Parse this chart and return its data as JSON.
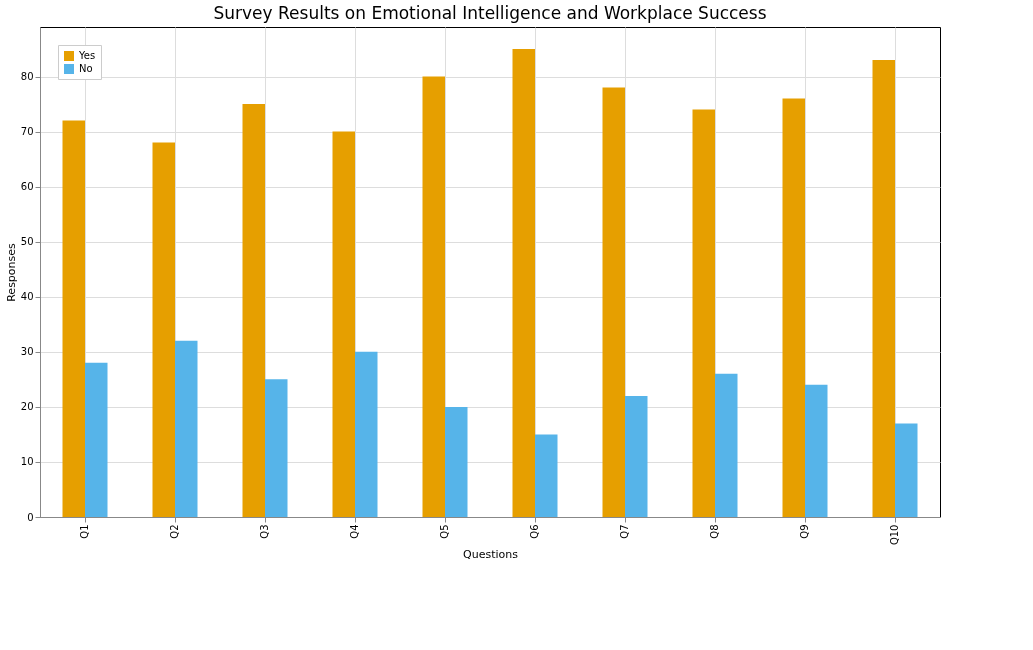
{
  "chart_data": {
    "type": "bar",
    "title": "Survey Results on Emotional Intelligence and Workplace Success",
    "xlabel": "Questions",
    "ylabel": "Responses",
    "categories": [
      "Q1",
      "Q2",
      "Q3",
      "Q4",
      "Q5",
      "Q6",
      "Q7",
      "Q8",
      "Q9",
      "Q10"
    ],
    "series": [
      {
        "name": "Yes",
        "color": "#e69f00",
        "values": [
          72,
          68,
          75,
          70,
          80,
          85,
          78,
          74,
          76,
          83
        ]
      },
      {
        "name": "No",
        "color": "#56b4e9",
        "values": [
          28,
          32,
          25,
          30,
          20,
          15,
          22,
          26,
          24,
          17
        ]
      }
    ],
    "ylim": [
      0,
      89
    ],
    "yticks": [
      0,
      10,
      20,
      30,
      40,
      50,
      60,
      70,
      80
    ],
    "grid": true,
    "legend": "top left"
  }
}
